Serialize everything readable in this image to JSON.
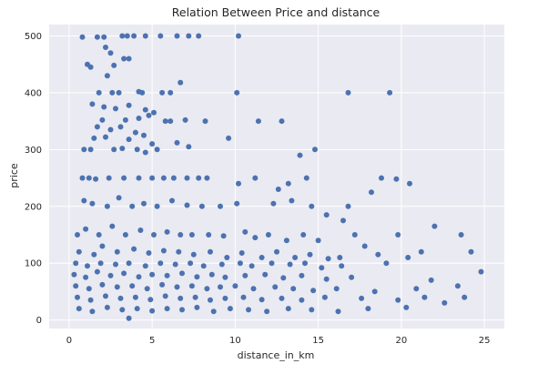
{
  "chart_data": {
    "type": "scatter",
    "title": "Relation Between Price and distance",
    "xlabel": "distance_in_km",
    "ylabel": "price",
    "xlim": [
      -1.2,
      26.2
    ],
    "ylim": [
      -15,
      520
    ],
    "xticks": [
      0,
      5,
      10,
      15,
      20,
      25
    ],
    "yticks": [
      0,
      100,
      200,
      300,
      400,
      500
    ],
    "xtick_labels": [
      "0",
      "5",
      "10",
      "15",
      "20",
      "25"
    ],
    "ytick_labels": [
      "0",
      "100",
      "200",
      "300",
      "400",
      "500"
    ],
    "grid": true,
    "colors": {
      "background": "#eaeaf2",
      "grid": "#ffffff",
      "marker": "#4c72b0",
      "text": "#262626"
    },
    "series": [
      {
        "points": [
          [
            0.8,
            498
          ],
          [
            1.7,
            498
          ],
          [
            2.1,
            498
          ],
          [
            3.2,
            500
          ],
          [
            3.5,
            500
          ],
          [
            3.9,
            500
          ],
          [
            4.6,
            500
          ],
          [
            5.5,
            500
          ],
          [
            6.5,
            500
          ],
          [
            7.2,
            500
          ],
          [
            7.8,
            500
          ],
          [
            10.2,
            500
          ],
          [
            1.1,
            450
          ],
          [
            1.3,
            445
          ],
          [
            2.7,
            448
          ],
          [
            2.5,
            470
          ],
          [
            3.3,
            460
          ],
          [
            3.6,
            460
          ],
          [
            2.2,
            480
          ],
          [
            2.3,
            430
          ],
          [
            1.8,
            400
          ],
          [
            2.6,
            400
          ],
          [
            3.0,
            400
          ],
          [
            4.2,
            402
          ],
          [
            4.4,
            400
          ],
          [
            5.6,
            400
          ],
          [
            6.1,
            400
          ],
          [
            6.7,
            418
          ],
          [
            10.1,
            400
          ],
          [
            16.8,
            400
          ],
          [
            19.3,
            400
          ],
          [
            1.4,
            380
          ],
          [
            2.1,
            375
          ],
          [
            2.8,
            372
          ],
          [
            3.6,
            378
          ],
          [
            4.6,
            370
          ],
          [
            4.8,
            360
          ],
          [
            2.0,
            352
          ],
          [
            3.4,
            352
          ],
          [
            4.2,
            355
          ],
          [
            5.1,
            365
          ],
          [
            5.8,
            350
          ],
          [
            6.1,
            350
          ],
          [
            7.0,
            352
          ],
          [
            8.2,
            350
          ],
          [
            11.4,
            350
          ],
          [
            12.8,
            350
          ],
          [
            1.7,
            340
          ],
          [
            2.5,
            335
          ],
          [
            3.1,
            340
          ],
          [
            4.0,
            330
          ],
          [
            1.5,
            320
          ],
          [
            2.2,
            322
          ],
          [
            3.6,
            318
          ],
          [
            4.5,
            325
          ],
          [
            5.0,
            310
          ],
          [
            6.5,
            312
          ],
          [
            7.2,
            305
          ],
          [
            9.6,
            320
          ],
          [
            0.9,
            300
          ],
          [
            1.3,
            300
          ],
          [
            2.7,
            300
          ],
          [
            3.2,
            302
          ],
          [
            4.1,
            300
          ],
          [
            4.6,
            295
          ],
          [
            5.3,
            300
          ],
          [
            14.8,
            300
          ],
          [
            13.9,
            290
          ],
          [
            18.8,
            250
          ],
          [
            19.7,
            248
          ],
          [
            20.5,
            240
          ],
          [
            0.8,
            250
          ],
          [
            1.2,
            250
          ],
          [
            1.6,
            248
          ],
          [
            2.4,
            250
          ],
          [
            3.3,
            250
          ],
          [
            4.2,
            250
          ],
          [
            5.0,
            250
          ],
          [
            5.7,
            250
          ],
          [
            6.3,
            250
          ],
          [
            7.1,
            250
          ],
          [
            7.8,
            250
          ],
          [
            8.3,
            250
          ],
          [
            10.2,
            240
          ],
          [
            11.2,
            250
          ],
          [
            12.6,
            230
          ],
          [
            13.2,
            240
          ],
          [
            14.3,
            250
          ],
          [
            18.2,
            225
          ],
          [
            22.0,
            165
          ],
          [
            16.5,
            175
          ],
          [
            0.9,
            210
          ],
          [
            1.4,
            205
          ],
          [
            2.3,
            200
          ],
          [
            3.0,
            215
          ],
          [
            3.8,
            200
          ],
          [
            4.5,
            205
          ],
          [
            5.3,
            200
          ],
          [
            6.2,
            210
          ],
          [
            7.1,
            202
          ],
          [
            8.0,
            200
          ],
          [
            9.1,
            200
          ],
          [
            10.1,
            205
          ],
          [
            12.3,
            205
          ],
          [
            13.4,
            210
          ],
          [
            14.6,
            200
          ],
          [
            15.5,
            185
          ],
          [
            16.8,
            200
          ],
          [
            17.2,
            150
          ],
          [
            19.8,
            150
          ],
          [
            23.6,
            150
          ],
          [
            0.5,
            150
          ],
          [
            1.0,
            160
          ],
          [
            1.8,
            150
          ],
          [
            2.6,
            165
          ],
          [
            3.4,
            150
          ],
          [
            4.3,
            158
          ],
          [
            5.1,
            150
          ],
          [
            5.9,
            155
          ],
          [
            6.7,
            150
          ],
          [
            7.4,
            150
          ],
          [
            8.4,
            150
          ],
          [
            9.3,
            148
          ],
          [
            10.6,
            155
          ],
          [
            11.2,
            145
          ],
          [
            12.0,
            150
          ],
          [
            13.1,
            140
          ],
          [
            14.1,
            150
          ],
          [
            15.0,
            140
          ],
          [
            17.8,
            130
          ],
          [
            21.2,
            120
          ],
          [
            0.6,
            120
          ],
          [
            1.5,
            115
          ],
          [
            2.0,
            130
          ],
          [
            2.9,
            120
          ],
          [
            3.9,
            125
          ],
          [
            4.8,
            118
          ],
          [
            5.7,
            122
          ],
          [
            6.6,
            120
          ],
          [
            7.5,
            115
          ],
          [
            8.5,
            120
          ],
          [
            9.5,
            110
          ],
          [
            10.4,
            118
          ],
          [
            11.6,
            110
          ],
          [
            12.5,
            120
          ],
          [
            13.6,
            110
          ],
          [
            14.5,
            115
          ],
          [
            15.6,
            108
          ],
          [
            16.3,
            110
          ],
          [
            18.6,
            115
          ],
          [
            20.4,
            110
          ],
          [
            0.4,
            100
          ],
          [
            1.1,
            95
          ],
          [
            1.9,
            100
          ],
          [
            2.8,
            98
          ],
          [
            3.6,
            100
          ],
          [
            4.6,
            95
          ],
          [
            5.5,
            100
          ],
          [
            6.4,
            98
          ],
          [
            7.3,
            100
          ],
          [
            8.1,
            95
          ],
          [
            9.2,
            98
          ],
          [
            10.3,
            100
          ],
          [
            11.0,
            95
          ],
          [
            12.2,
            100
          ],
          [
            13.3,
            98
          ],
          [
            14.2,
            100
          ],
          [
            15.2,
            92
          ],
          [
            16.4,
            95
          ],
          [
            19.1,
            100
          ],
          [
            24.2,
            120
          ],
          [
            0.3,
            80
          ],
          [
            1.0,
            75
          ],
          [
            1.7,
            85
          ],
          [
            2.5,
            78
          ],
          [
            3.3,
            82
          ],
          [
            4.2,
            76
          ],
          [
            5.0,
            80
          ],
          [
            5.9,
            78
          ],
          [
            6.8,
            82
          ],
          [
            7.7,
            76
          ],
          [
            8.6,
            80
          ],
          [
            9.4,
            75
          ],
          [
            10.6,
            78
          ],
          [
            11.8,
            80
          ],
          [
            12.9,
            74
          ],
          [
            14.0,
            78
          ],
          [
            15.5,
            72
          ],
          [
            17.0,
            75
          ],
          [
            21.8,
            70
          ],
          [
            24.8,
            85
          ],
          [
            0.4,
            60
          ],
          [
            1.2,
            55
          ],
          [
            2.0,
            62
          ],
          [
            2.9,
            58
          ],
          [
            3.8,
            60
          ],
          [
            4.7,
            55
          ],
          [
            5.6,
            62
          ],
          [
            6.5,
            58
          ],
          [
            7.4,
            60
          ],
          [
            8.3,
            55
          ],
          [
            9.1,
            58
          ],
          [
            10.0,
            60
          ],
          [
            11.1,
            55
          ],
          [
            12.4,
            58
          ],
          [
            13.5,
            55
          ],
          [
            14.7,
            52
          ],
          [
            16.1,
            55
          ],
          [
            18.4,
            50
          ],
          [
            20.9,
            55
          ],
          [
            23.4,
            60
          ],
          [
            0.5,
            40
          ],
          [
            1.3,
            35
          ],
          [
            2.2,
            42
          ],
          [
            3.1,
            38
          ],
          [
            4.0,
            40
          ],
          [
            4.9,
            36
          ],
          [
            5.8,
            42
          ],
          [
            6.7,
            38
          ],
          [
            7.6,
            40
          ],
          [
            8.5,
            35
          ],
          [
            9.4,
            38
          ],
          [
            10.5,
            40
          ],
          [
            11.6,
            36
          ],
          [
            12.8,
            38
          ],
          [
            14.0,
            35
          ],
          [
            15.4,
            40
          ],
          [
            17.6,
            38
          ],
          [
            19.8,
            35
          ],
          [
            21.4,
            40
          ],
          [
            23.8,
            40
          ],
          [
            0.6,
            20
          ],
          [
            1.4,
            15
          ],
          [
            2.3,
            22
          ],
          [
            3.2,
            18
          ],
          [
            3.6,
            3
          ],
          [
            4.1,
            20
          ],
          [
            5.0,
            16
          ],
          [
            5.9,
            20
          ],
          [
            6.8,
            18
          ],
          [
            7.7,
            22
          ],
          [
            8.7,
            15
          ],
          [
            9.7,
            20
          ],
          [
            10.8,
            18
          ],
          [
            11.9,
            15
          ],
          [
            13.2,
            20
          ],
          [
            14.6,
            18
          ],
          [
            16.2,
            15
          ],
          [
            18.0,
            20
          ],
          [
            20.3,
            22
          ],
          [
            22.6,
            30
          ]
        ]
      }
    ]
  }
}
